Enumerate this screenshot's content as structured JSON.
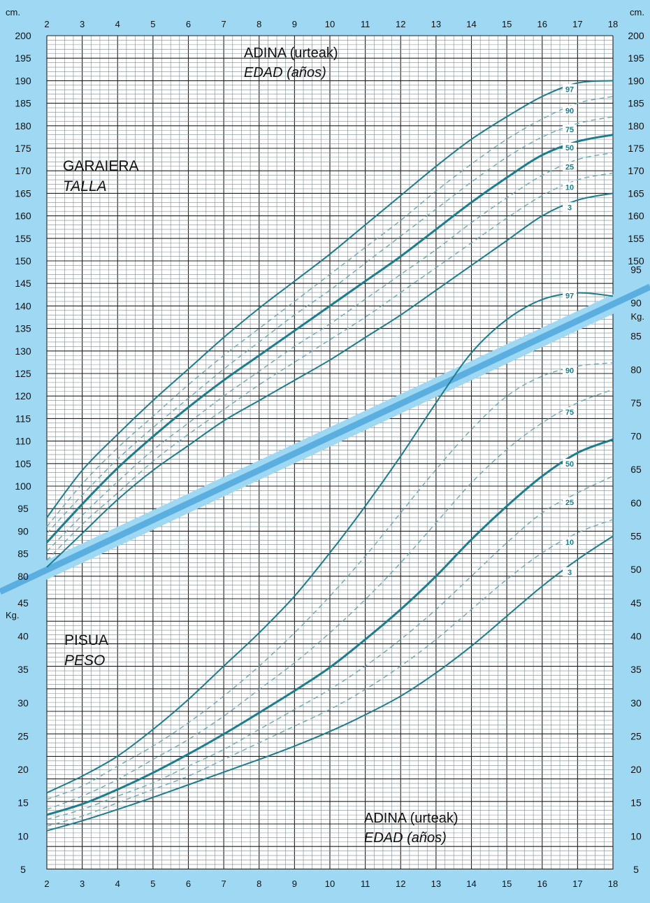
{
  "colors": {
    "background": "#9fd8f3",
    "plot": "#ffffff",
    "grid_minor": "#7d8b92",
    "grid_major": "#202020",
    "curve": "#1b7d8e",
    "curve_dashed": "#6da9b5",
    "divider": "#5aaee0",
    "text": "#111111"
  },
  "labels": {
    "cm_left": "cm.",
    "cm_right": "cm.",
    "kg_left": "Kg.",
    "kg_right": "Kg.",
    "age_top_line1": "ADINA (urteak)",
    "age_top_line2": "EDAD (años)",
    "height_line1": "GARAIERA",
    "height_line2": "TALLA",
    "weight_line1": "PISUA",
    "weight_line2": "PESO",
    "age_bottom_line1": "ADINA (urteak)",
    "age_bottom_line2": "EDAD (años)"
  },
  "chart_data": [
    {
      "type": "line",
      "title": "GARAIERA / TALLA",
      "xlabel": "ADINA (urteak) / EDAD (años)",
      "ylabel": "cm.",
      "xlim": [
        2,
        18
      ],
      "ylim": [
        78,
        200
      ],
      "x_ticks": [
        2,
        3,
        4,
        5,
        6,
        7,
        8,
        9,
        10,
        11,
        12,
        13,
        14,
        15,
        16,
        17,
        18
      ],
      "y_ticks_left": [
        80,
        85,
        90,
        95,
        100,
        105,
        110,
        115,
        120,
        125,
        130,
        135,
        140,
        145,
        150,
        155,
        160,
        165,
        170,
        175,
        180,
        185,
        190,
        195,
        200
      ],
      "y_ticks_right": [
        150,
        155,
        160,
        165,
        170,
        175,
        180,
        185,
        190,
        195,
        200
      ],
      "grid": true,
      "series": [
        {
          "name": "97",
          "style": "solid",
          "x": [
            2,
            3,
            4,
            5,
            6,
            7,
            8,
            9,
            10,
            11,
            12,
            13,
            14,
            15,
            16,
            17,
            18
          ],
          "y": [
            93,
            103.5,
            111.5,
            119,
            126,
            133,
            139.5,
            145.5,
            151.5,
            158,
            164.5,
            171,
            177,
            182,
            186.5,
            189.5,
            190
          ]
        },
        {
          "name": "90",
          "style": "dashed",
          "x": [
            2,
            3,
            4,
            5,
            6,
            7,
            8,
            9,
            10,
            11,
            12,
            13,
            14,
            15,
            16,
            17,
            18
          ],
          "y": [
            91,
            100.5,
            108.5,
            115.5,
            122.5,
            129,
            135,
            141,
            147,
            153,
            159,
            165.5,
            171.5,
            177,
            181.5,
            185,
            186.5
          ]
        },
        {
          "name": "75",
          "style": "dashed",
          "x": [
            2,
            3,
            4,
            5,
            6,
            7,
            8,
            9,
            10,
            11,
            12,
            13,
            14,
            15,
            16,
            17,
            18
          ],
          "y": [
            89.5,
            98,
            106,
            113,
            119.5,
            126,
            132,
            138,
            143.5,
            149.5,
            155.5,
            161.5,
            167.5,
            173,
            177.5,
            180.5,
            182
          ]
        },
        {
          "name": "50",
          "style": "solid",
          "x": [
            2,
            3,
            4,
            5,
            6,
            7,
            8,
            9,
            10,
            11,
            12,
            13,
            14,
            15,
            16,
            17,
            18
          ],
          "y": [
            87.5,
            96,
            104,
            111,
            117.5,
            123.5,
            129,
            134.5,
            140,
            145.5,
            151,
            157,
            163,
            168.5,
            173.5,
            176.5,
            178
          ]
        },
        {
          "name": "25",
          "style": "dashed",
          "x": [
            2,
            3,
            4,
            5,
            6,
            7,
            8,
            9,
            10,
            11,
            12,
            13,
            14,
            15,
            16,
            17,
            18
          ],
          "y": [
            85.5,
            93.5,
            101,
            108,
            114,
            120,
            125.5,
            131,
            136,
            141.5,
            147,
            152.5,
            158.5,
            164,
            169,
            172.5,
            174
          ]
        },
        {
          "name": "10",
          "style": "dashed",
          "x": [
            2,
            3,
            4,
            5,
            6,
            7,
            8,
            9,
            10,
            11,
            12,
            13,
            14,
            15,
            16,
            17,
            18
          ],
          "y": [
            83.5,
            91.5,
            98.5,
            105.5,
            111.5,
            117,
            122.5,
            127.5,
            132.5,
            137.5,
            143,
            148.5,
            154,
            159.5,
            164.5,
            168,
            169.5
          ]
        },
        {
          "name": "3",
          "style": "solid",
          "x": [
            2,
            3,
            4,
            5,
            6,
            7,
            8,
            9,
            10,
            11,
            12,
            13,
            14,
            15,
            16,
            17,
            18
          ],
          "y": [
            82,
            89.5,
            97,
            103.5,
            109,
            114.5,
            119,
            123.5,
            128,
            133,
            138,
            143.5,
            149,
            154.5,
            160,
            163.5,
            165
          ]
        }
      ]
    },
    {
      "type": "line",
      "title": "PISUA / PESO",
      "xlabel": "ADINA (urteak) / EDAD (años)",
      "ylabel": "Kg.",
      "xlim": [
        2,
        18
      ],
      "ylim": [
        5,
        96
      ],
      "x_ticks": [
        2,
        3,
        4,
        5,
        6,
        7,
        8,
        9,
        10,
        11,
        12,
        13,
        14,
        15,
        16,
        17,
        18
      ],
      "y_ticks_left": [
        5,
        10,
        15,
        20,
        25,
        30,
        35,
        40,
        45
      ],
      "y_ticks_right": [
        5,
        10,
        15,
        20,
        25,
        30,
        35,
        40,
        45,
        50,
        55,
        60,
        65,
        70,
        75,
        80,
        85,
        90,
        95
      ],
      "grid": true,
      "series": [
        {
          "name": "97",
          "style": "solid",
          "x": [
            2,
            3,
            4,
            5,
            6,
            7,
            8,
            9,
            10,
            11,
            12,
            13,
            14,
            15,
            16,
            17,
            18
          ],
          "y": [
            16.5,
            19,
            22,
            26,
            30.5,
            35.5,
            40.5,
            46,
            52.5,
            59.5,
            67,
            75,
            82.5,
            87.5,
            90.5,
            91.5,
            91
          ]
        },
        {
          "name": "90",
          "style": "dashed",
          "x": [
            2,
            3,
            4,
            5,
            6,
            7,
            8,
            9,
            10,
            11,
            12,
            13,
            14,
            15,
            16,
            17,
            18
          ],
          "y": [
            15.5,
            17.5,
            20.5,
            23.5,
            27,
            31,
            35.5,
            40.5,
            46,
            52,
            58.5,
            65,
            71,
            76,
            79,
            80.5,
            81
          ]
        },
        {
          "name": "75",
          "style": "dashed",
          "x": [
            2,
            3,
            4,
            5,
            6,
            7,
            8,
            9,
            10,
            11,
            12,
            13,
            14,
            15,
            16,
            17,
            18
          ],
          "y": [
            14,
            16,
            18.5,
            21.5,
            24.5,
            28,
            32,
            36,
            40.5,
            45.5,
            51,
            57,
            63,
            68,
            72,
            75,
            77
          ]
        },
        {
          "name": "50",
          "style": "solid",
          "x": [
            2,
            3,
            4,
            5,
            6,
            7,
            8,
            9,
            10,
            11,
            12,
            13,
            14,
            15,
            16,
            17,
            18
          ],
          "y": [
            13.2,
            14.8,
            17,
            19.5,
            22.3,
            25.3,
            28.5,
            31.8,
            35.3,
            39.5,
            44,
            49,
            54.5,
            59.5,
            64,
            67.5,
            69.5
          ]
        },
        {
          "name": "25",
          "style": "dashed",
          "x": [
            2,
            3,
            4,
            5,
            6,
            7,
            8,
            9,
            10,
            11,
            12,
            13,
            14,
            15,
            16,
            17,
            18
          ],
          "y": [
            12.5,
            14,
            16,
            18,
            20.5,
            23,
            26,
            29,
            32,
            35.5,
            39.5,
            44,
            49,
            54,
            58.5,
            61.5,
            64
          ]
        },
        {
          "name": "10",
          "style": "dashed",
          "x": [
            2,
            3,
            4,
            5,
            6,
            7,
            8,
            9,
            10,
            11,
            12,
            13,
            14,
            15,
            16,
            17,
            18
          ],
          "y": [
            11.5,
            13,
            15,
            17,
            19,
            21.5,
            24,
            26.5,
            29,
            32,
            35.5,
            39.5,
            44,
            48.5,
            52.5,
            55.5,
            57.5
          ]
        },
        {
          "name": "3",
          "style": "solid",
          "x": [
            2,
            3,
            4,
            5,
            6,
            7,
            8,
            9,
            10,
            11,
            12,
            13,
            14,
            15,
            16,
            17,
            18
          ],
          "y": [
            10.8,
            12.3,
            14,
            15.8,
            17.7,
            19.6,
            21.5,
            23.5,
            25.7,
            28.2,
            31,
            34.5,
            38.5,
            43,
            47.5,
            51.5,
            55
          ]
        }
      ]
    }
  ]
}
